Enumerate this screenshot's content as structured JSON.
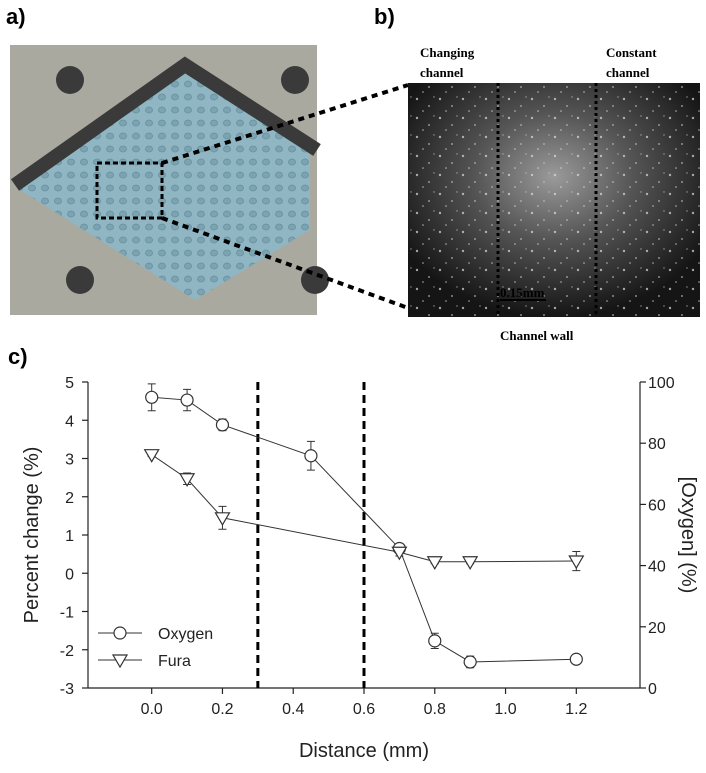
{
  "panels": {
    "a_label": "a)",
    "b_label": "b)",
    "c_label": "c)",
    "changing_channel": [
      "Changing",
      "channel"
    ],
    "constant_channel": [
      "Constant",
      "channel"
    ],
    "channel_wall": "Channel wall",
    "scale_bar": "0.15mm"
  },
  "chart_data": {
    "type": "errorbar-line",
    "xlabel": "Distance (mm)",
    "ylabel": "Percent change (%)",
    "y2label": "[Oxygen] (%)",
    "xlim": [
      -0.18,
      1.38
    ],
    "ylim": [
      -3,
      5
    ],
    "y2lim": [
      0,
      100
    ],
    "xticks": [
      {
        "value": 0,
        "label": "0.0"
      },
      0.2,
      0.4,
      0.6,
      0.8,
      {
        "value": 1,
        "label": "1.0"
      },
      1.2
    ],
    "yticks": [
      -3,
      -2,
      -1,
      0,
      1,
      2,
      3,
      4,
      5
    ],
    "y2ticks": [
      0,
      20,
      40,
      60,
      80,
      100
    ],
    "vlines": [
      0.3,
      0.6
    ],
    "legend": "lower left",
    "series": [
      {
        "name": "Oxygen",
        "axis": "y2",
        "marker": "circle",
        "color": "#333333",
        "x": [
          0,
          0.1,
          0.2,
          0.45,
          0.7,
          0.8,
          0.9,
          1.2
        ],
        "values": [
          95,
          94.1,
          86,
          75.9,
          45.6,
          15.4,
          8.5,
          9.4
        ],
        "errors": [
          4.4,
          3.5,
          1.9,
          4.7,
          1.5,
          2.5,
          1.9,
          0.6
        ]
      },
      {
        "name": "Fura",
        "marker": "triangle-down",
        "color": "#333333",
        "x": [
          0,
          0.1,
          0.2,
          0.7,
          0.8,
          0.9,
          1.2
        ],
        "values": [
          3.1,
          2.47,
          1.45,
          0.55,
          0.3,
          0.3,
          0.32
        ],
        "errors": [
          0.05,
          0.15,
          0.3,
          0.1,
          0.05,
          0.05,
          0.25
        ]
      }
    ]
  }
}
